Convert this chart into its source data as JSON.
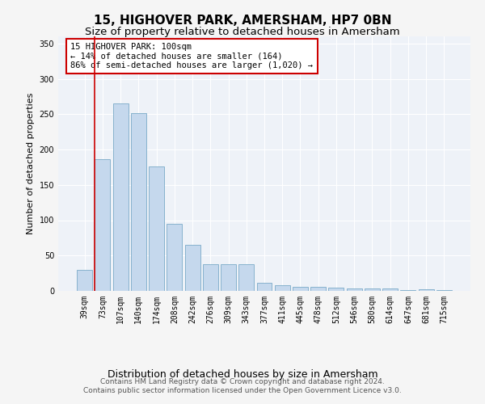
{
  "title": "15, HIGHOVER PARK, AMERSHAM, HP7 0BN",
  "subtitle": "Size of property relative to detached houses in Amersham",
  "xlabel": "Distribution of detached houses by size in Amersham",
  "ylabel": "Number of detached properties",
  "categories": [
    "39sqm",
    "73sqm",
    "107sqm",
    "140sqm",
    "174sqm",
    "208sqm",
    "242sqm",
    "276sqm",
    "309sqm",
    "343sqm",
    "377sqm",
    "411sqm",
    "445sqm",
    "478sqm",
    "512sqm",
    "546sqm",
    "580sqm",
    "614sqm",
    "647sqm",
    "681sqm",
    "715sqm"
  ],
  "values": [
    30,
    186,
    265,
    252,
    176,
    95,
    65,
    38,
    38,
    38,
    11,
    8,
    6,
    6,
    5,
    3,
    3,
    3,
    1,
    2,
    1
  ],
  "bar_color": "#c5d8ed",
  "bar_edge_color": "#7aaac8",
  "vline_x_idx": 1,
  "vline_color": "#cc0000",
  "ylim": [
    0,
    360
  ],
  "yticks": [
    0,
    50,
    100,
    150,
    200,
    250,
    300,
    350
  ],
  "annotation_title": "15 HIGHOVER PARK: 100sqm",
  "annotation_line1": "← 14% of detached houses are smaller (164)",
  "annotation_line2": "86% of semi-detached houses are larger (1,020) →",
  "annotation_box_color": "#ffffff",
  "annotation_box_edge": "#cc0000",
  "footer1": "Contains HM Land Registry data © Crown copyright and database right 2024.",
  "footer2": "Contains public sector information licensed under the Open Government Licence v3.0.",
  "background_color": "#eef2f8",
  "grid_color": "#ffffff",
  "fig_bg_color": "#f5f5f5",
  "title_fontsize": 11,
  "subtitle_fontsize": 9.5,
  "ylabel_fontsize": 8,
  "xlabel_fontsize": 9,
  "tick_fontsize": 7,
  "annotation_fontsize": 7.5,
  "footer_fontsize": 6.5
}
